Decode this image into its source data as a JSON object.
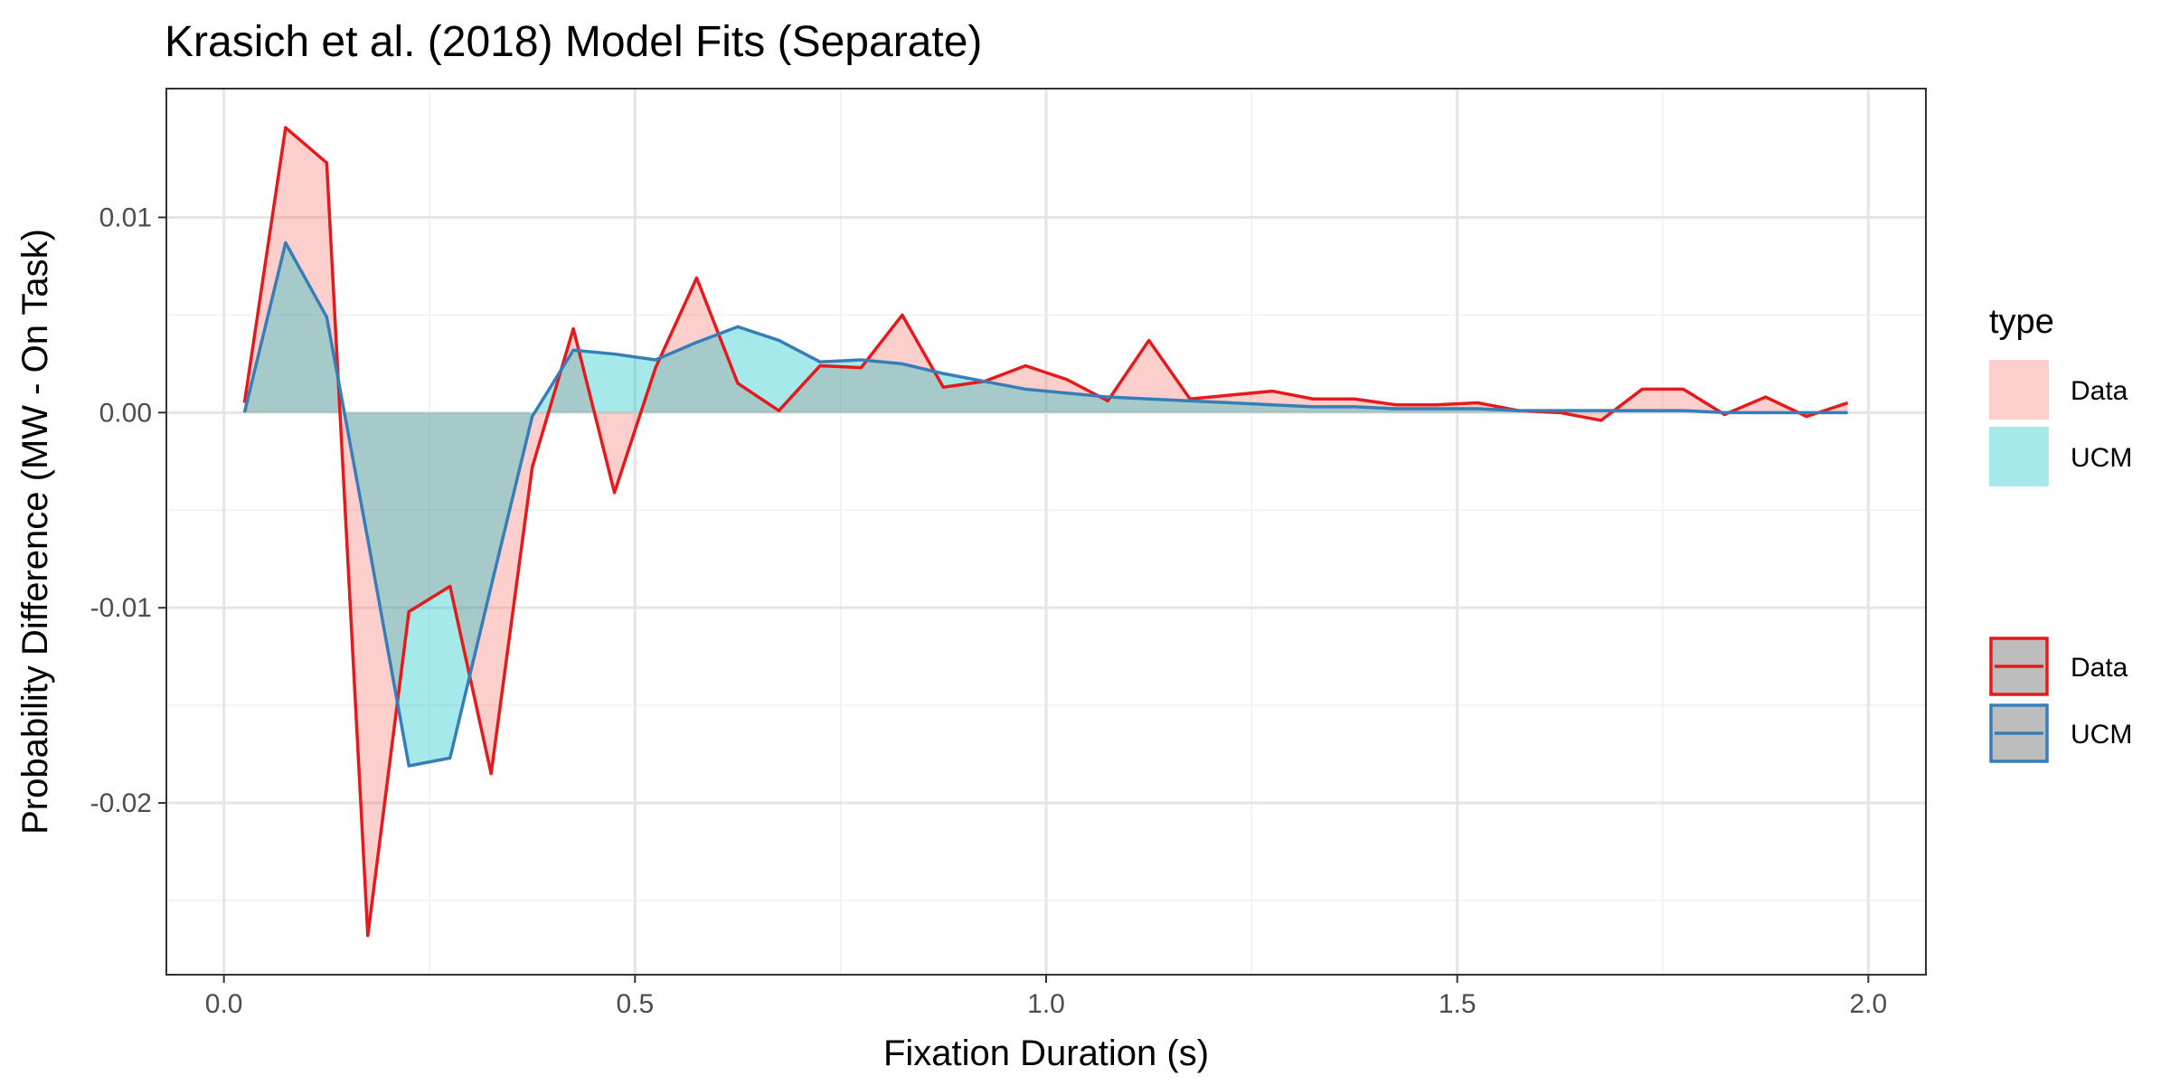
{
  "chart_data": {
    "type": "area",
    "title": "Krasich et al. (2018) Model Fits (Separate)",
    "xlabel": "Fixation Duration (s)",
    "ylabel": "Probability Difference (MW - On Task)",
    "xlim": [
      -0.07,
      2.07
    ],
    "ylim": [
      -0.0288,
      0.0166
    ],
    "x_ticks": [
      0.0,
      0.5,
      1.0,
      1.5,
      2.0
    ],
    "x_tick_labels": [
      "0.0",
      "0.5",
      "1.0",
      "1.5",
      "2.0"
    ],
    "y_ticks": [
      -0.02,
      -0.01,
      0.0,
      0.01
    ],
    "y_tick_labels": [
      "-0.02",
      "-0.01",
      "0.00",
      "0.01"
    ],
    "grid": true,
    "legend_placement": "right",
    "legends": [
      {
        "title": "type",
        "kind": "fill",
        "entries": [
          "Data",
          "UCM"
        ]
      },
      {
        "title": "",
        "kind": "line",
        "entries": [
          "Data",
          "UCM"
        ]
      }
    ],
    "x": [
      0.025,
      0.075,
      0.125,
      0.175,
      0.225,
      0.275,
      0.325,
      0.375,
      0.425,
      0.475,
      0.525,
      0.575,
      0.625,
      0.675,
      0.725,
      0.775,
      0.825,
      0.875,
      0.925,
      0.975,
      1.025,
      1.075,
      1.125,
      1.175,
      1.225,
      1.275,
      1.325,
      1.375,
      1.425,
      1.475,
      1.525,
      1.575,
      1.625,
      1.675,
      1.725,
      1.775,
      1.825,
      1.875,
      1.925,
      1.975
    ],
    "series": [
      {
        "name": "Data",
        "fill_color": "#f8766d",
        "line_color": "#e41a1c",
        "values": [
          0.0005,
          0.0146,
          0.0128,
          -0.0268,
          -0.0102,
          -0.0089,
          -0.0185,
          -0.0028,
          0.0043,
          -0.0041,
          0.0023,
          0.0069,
          0.0015,
          0.0001,
          0.0024,
          0.0023,
          0.005,
          0.0013,
          0.0016,
          0.0024,
          0.0017,
          0.0006,
          0.0037,
          0.0007,
          0.0009,
          0.0011,
          0.0007,
          0.0007,
          0.0004,
          0.0004,
          0.0005,
          0.0001,
          0.0,
          -0.0004,
          0.0012,
          0.0012,
          -0.0001,
          0.0008,
          -0.0002,
          0.0005
        ]
      },
      {
        "name": "UCM",
        "fill_color": "#00bfc4",
        "line_color": "#377eb8",
        "values": [
          0.0,
          0.0087,
          0.0049,
          -0.0065,
          -0.0181,
          -0.0177,
          -0.0089,
          -0.0002,
          0.0032,
          0.003,
          0.0027,
          0.0036,
          0.0044,
          0.0037,
          0.0026,
          0.0027,
          0.0025,
          0.002,
          0.0016,
          0.0012,
          0.001,
          0.0008,
          0.0007,
          0.0006,
          0.0005,
          0.0004,
          0.0003,
          0.0003,
          0.0002,
          0.0002,
          0.0002,
          0.0001,
          0.0001,
          0.0001,
          0.0001,
          0.0001,
          0.0,
          0.0,
          0.0,
          0.0
        ]
      }
    ]
  }
}
